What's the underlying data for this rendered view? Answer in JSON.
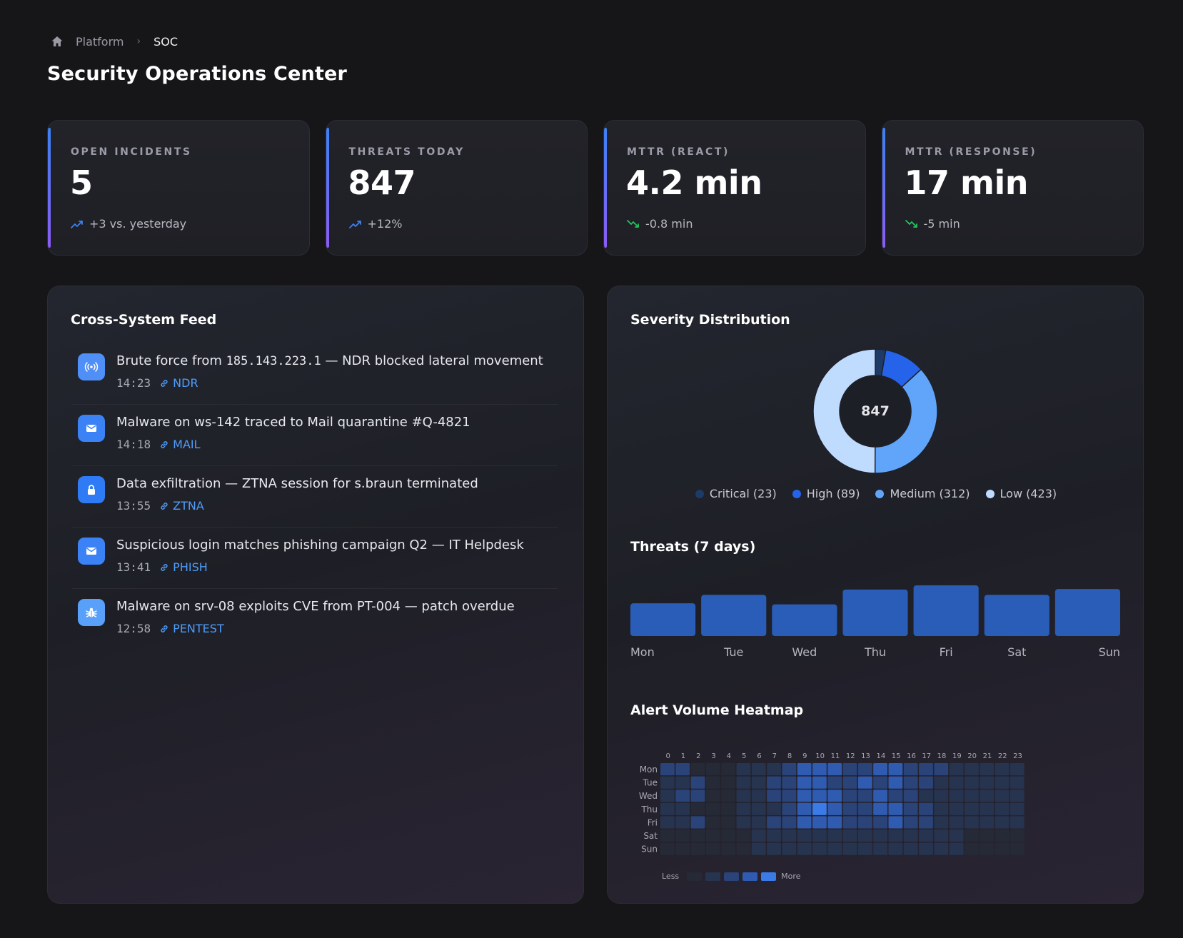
{
  "breadcrumb": {
    "root": "Platform",
    "current": "SOC"
  },
  "page": {
    "title": "Security Operations Center"
  },
  "kpis": [
    {
      "label": "OPEN INCIDENTS",
      "value": "5",
      "delta": "+3 vs. yesterday",
      "trend": "up"
    },
    {
      "label": "THREATS TODAY",
      "value": "847",
      "delta": "+12%",
      "trend": "up"
    },
    {
      "label": "MTTR (REACT)",
      "value": "4.2 min",
      "delta": "-0.8 min",
      "trend": "down"
    },
    {
      "label": "MTTR (RESPONSE)",
      "value": "17 min",
      "delta": "-5 min",
      "trend": "down"
    }
  ],
  "feed": {
    "title": "Cross-System Feed",
    "items": [
      {
        "icon": "radar-icon",
        "text_pre": "Brute force from ",
        "ip": "185.143.223.1",
        "text_post": " — NDR blocked lateral movement",
        "time": "14:23",
        "tag": "NDR"
      },
      {
        "icon": "mail-icon",
        "text": "Malware on ws-142 traced to Mail quarantine #Q-4821",
        "time": "14:18",
        "tag": "MAIL"
      },
      {
        "icon": "lock-icon",
        "text": "Data exfiltration — ZTNA session for s.braun terminated",
        "time": "13:55",
        "tag": "ZTNA"
      },
      {
        "icon": "mail-icon",
        "text": "Suspicious login matches phishing campaign Q2 — IT Helpdesk",
        "time": "13:41",
        "tag": "PHISH"
      },
      {
        "icon": "bug-icon",
        "text": "Malware on srv-08 exploits CVE from PT-004 — patch overdue",
        "time": "12:58",
        "tag": "PENTEST"
      }
    ]
  },
  "severity": {
    "title": "Severity Distribution",
    "total": "847",
    "legend": [
      "Critical (23)",
      "High (89)",
      "Medium (312)",
      "Low (423)"
    ],
    "colors": {
      "critical": "#1e3a66",
      "high": "#2563eb",
      "medium": "#60a5fa",
      "low": "#bfdbfe"
    }
  },
  "threats7": {
    "title": "Threats (7 days)"
  },
  "heatmap": {
    "title": "Alert Volume Heatmap",
    "legend_less": "Less",
    "legend_more": "More",
    "colors": [
      "#252a36",
      "#27344f",
      "#2a4378",
      "#2f5bb0",
      "#3b7be8"
    ]
  },
  "chart_data": [
    {
      "type": "pie",
      "title": "Severity Distribution",
      "labels": [
        "Critical",
        "High",
        "Medium",
        "Low"
      ],
      "values": [
        23,
        89,
        312,
        423
      ],
      "center_label": "847",
      "legend": "bottom"
    },
    {
      "type": "bar",
      "title": "Threats (7 days)",
      "categories": [
        "Mon",
        "Tue",
        "Wed",
        "Thu",
        "Fri",
        "Sat",
        "Sun"
      ],
      "values": [
        62,
        78,
        60,
        88,
        96,
        78,
        89
      ],
      "ylim": [
        0,
        100
      ]
    },
    {
      "type": "heatmap",
      "title": "Alert Volume Heatmap",
      "x": [
        "0",
        "1",
        "2",
        "3",
        "4",
        "5",
        "6",
        "7",
        "8",
        "9",
        "10",
        "11",
        "12",
        "13",
        "14",
        "15",
        "16",
        "17",
        "18",
        "19",
        "20",
        "21",
        "22",
        "23"
      ],
      "y": [
        "Mon",
        "Tue",
        "Wed",
        "Thu",
        "Fri",
        "Sat",
        "Sun"
      ],
      "values": [
        [
          2,
          2,
          0,
          0,
          0,
          1,
          1,
          1,
          2,
          3,
          3,
          3,
          2,
          2,
          3,
          3,
          2,
          2,
          2,
          1,
          1,
          1,
          1,
          1
        ],
        [
          1,
          1,
          2,
          0,
          0,
          1,
          1,
          2,
          2,
          3,
          3,
          2,
          2,
          3,
          2,
          3,
          2,
          2,
          1,
          1,
          1,
          1,
          1,
          1
        ],
        [
          1,
          2,
          2,
          0,
          0,
          1,
          1,
          2,
          2,
          3,
          3,
          3,
          2,
          2,
          3,
          2,
          2,
          1,
          1,
          1,
          1,
          1,
          1,
          1
        ],
        [
          1,
          1,
          0,
          0,
          0,
          1,
          1,
          1,
          2,
          3,
          4,
          3,
          2,
          2,
          3,
          3,
          2,
          2,
          1,
          1,
          1,
          1,
          1,
          1
        ],
        [
          1,
          1,
          2,
          0,
          0,
          1,
          1,
          2,
          2,
          3,
          3,
          3,
          2,
          2,
          2,
          3,
          2,
          2,
          1,
          1,
          1,
          1,
          1,
          1
        ],
        [
          0,
          0,
          0,
          0,
          0,
          0,
          1,
          1,
          1,
          1,
          1,
          1,
          1,
          1,
          1,
          1,
          1,
          1,
          1,
          1,
          0,
          0,
          0,
          0
        ],
        [
          0,
          0,
          0,
          0,
          0,
          0,
          1,
          1,
          1,
          1,
          1,
          1,
          1,
          1,
          1,
          1,
          1,
          1,
          1,
          1,
          0,
          0,
          0,
          0
        ]
      ],
      "legend": "bottom-left"
    }
  ]
}
